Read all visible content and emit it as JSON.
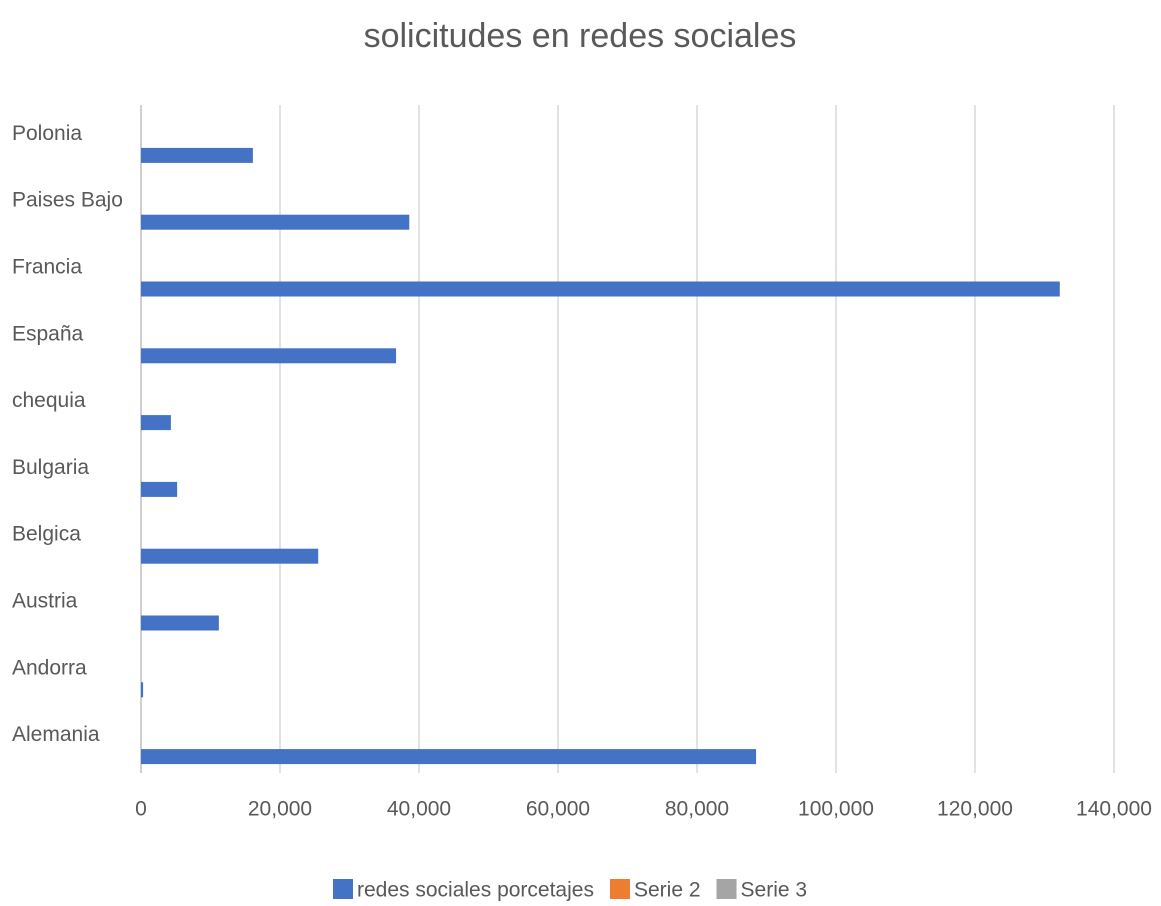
{
  "chart_data": {
    "type": "bar",
    "orientation": "horizontal",
    "title": "solicitudes en redes sociales",
    "categories": [
      "Alemania",
      "Andorra",
      "Austria",
      "Belgica",
      "Bulgaria",
      "chequia",
      "España",
      "Francia",
      "Paises Bajo",
      "Polonia"
    ],
    "series": [
      {
        "name": "redes sociales porcetajes",
        "color": "#4472c4",
        "values": [
          88500,
          300,
          11200,
          25500,
          5200,
          4300,
          36700,
          132200,
          38600,
          16100
        ]
      },
      {
        "name": "Serie 2",
        "color": "#ed7d31",
        "values": [
          null,
          null,
          null,
          null,
          null,
          null,
          null,
          null,
          null,
          null
        ]
      },
      {
        "name": "Serie 3",
        "color": "#a5a5a5",
        "values": [
          null,
          null,
          null,
          null,
          null,
          null,
          null,
          null,
          null,
          null
        ]
      }
    ],
    "xlim": [
      0,
      140000
    ],
    "xticks": [
      0,
      {
        "value": 20000,
        "label": "20,000"
      },
      {
        "value": 40000,
        "label": "40,000"
      },
      {
        "value": 60000,
        "label": "60,000"
      },
      {
        "value": 80000,
        "label": "80,000"
      },
      {
        "value": 100000,
        "label": "100,000"
      },
      {
        "value": 120000,
        "label": "120,000"
      },
      {
        "value": 140000,
        "label": "140,000"
      }
    ],
    "grid": true,
    "legend": "bottom"
  }
}
